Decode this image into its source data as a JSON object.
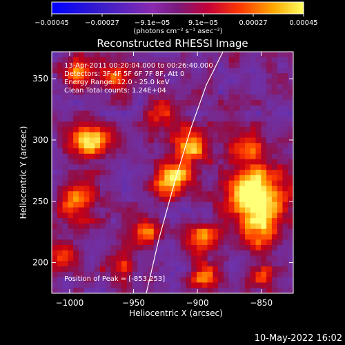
{
  "chart_data": {
    "type": "heatmap",
    "title": "Reconstructed RHESSI Image",
    "xlabel": "Heliocentric X (arcsec)",
    "ylabel": "Heliocentric Y (arcsec)",
    "xlim": [
      -1014,
      -825
    ],
    "ylim": [
      175,
      372
    ],
    "x_ticks": [
      {
        "value": -1000,
        "label": "−1000"
      },
      {
        "value": -950,
        "label": "−950"
      },
      {
        "value": -900,
        "label": "−900"
      },
      {
        "value": -850,
        "label": "−850"
      }
    ],
    "y_ticks": [
      {
        "value": 200,
        "label": "200"
      },
      {
        "value": 250,
        "label": "250"
      },
      {
        "value": 300,
        "label": "300"
      },
      {
        "value": 350,
        "label": "350"
      }
    ],
    "colorbar": {
      "min": -0.00045,
      "max": 0.00045,
      "ticks": [
        {
          "value": -0.00045,
          "label": "−0.00045"
        },
        {
          "value": -0.00027,
          "label": "−0.00027"
        },
        {
          "value": -9.1e-05,
          "label": "−9.1e−05"
        },
        {
          "value": 9.1e-05,
          "label": "9.1e−05"
        },
        {
          "value": 0.00027,
          "label": "0.00027"
        },
        {
          "value": 0.00045,
          "label": "0.00045"
        }
      ],
      "units": "(photons cm⁻² s⁻¹ asec⁻²)"
    },
    "annotations": [
      "13-Apr-2011 00:20:04.000 to 00:26:40.000",
      "Detectors: 3F 4F 5F 6F 7F 8F, Att 0",
      "Energy Range: 12.0 - 25.0 keV",
      "Clean      Total counts: 1.24E+04"
    ],
    "peak_label": "Position of Peak = [-853,253]",
    "peak": {
      "x": -853,
      "y": 253
    },
    "limb_curve": {
      "x": [
        -940,
        -930,
        -918,
        -905,
        -893,
        -880
      ],
      "y": [
        175,
        220,
        265,
        310,
        345,
        372
      ]
    },
    "sources": [
      {
        "x": -855,
        "y": 255,
        "amp": 1.0,
        "r": 16
      },
      {
        "x": -862,
        "y": 295,
        "amp": 0.55,
        "r": 9
      },
      {
        "x": -850,
        "y": 225,
        "amp": 0.55,
        "r": 10
      },
      {
        "x": -920,
        "y": 268,
        "amp": 0.85,
        "r": 10
      },
      {
        "x": -905,
        "y": 295,
        "amp": 0.7,
        "r": 10
      },
      {
        "x": -925,
        "y": 320,
        "amp": 0.45,
        "r": 8
      },
      {
        "x": -985,
        "y": 300,
        "amp": 0.8,
        "r": 10
      },
      {
        "x": -995,
        "y": 250,
        "amp": 0.6,
        "r": 11
      },
      {
        "x": -965,
        "y": 350,
        "amp": 0.45,
        "r": 9
      },
      {
        "x": -995,
        "y": 355,
        "amp": 0.55,
        "r": 8
      },
      {
        "x": -940,
        "y": 225,
        "amp": 0.55,
        "r": 8
      },
      {
        "x": -960,
        "y": 200,
        "amp": 0.45,
        "r": 8
      },
      {
        "x": -895,
        "y": 220,
        "amp": 0.55,
        "r": 9
      },
      {
        "x": -895,
        "y": 190,
        "amp": 0.5,
        "r": 8
      },
      {
        "x": -850,
        "y": 190,
        "amp": 0.45,
        "r": 7
      },
      {
        "x": -1005,
        "y": 205,
        "amp": 0.45,
        "r": 8
      }
    ],
    "colors": {
      "background": "#000000",
      "text": "#ffffff"
    }
  },
  "footer": {
    "date": "10-May-2022 16:02"
  }
}
